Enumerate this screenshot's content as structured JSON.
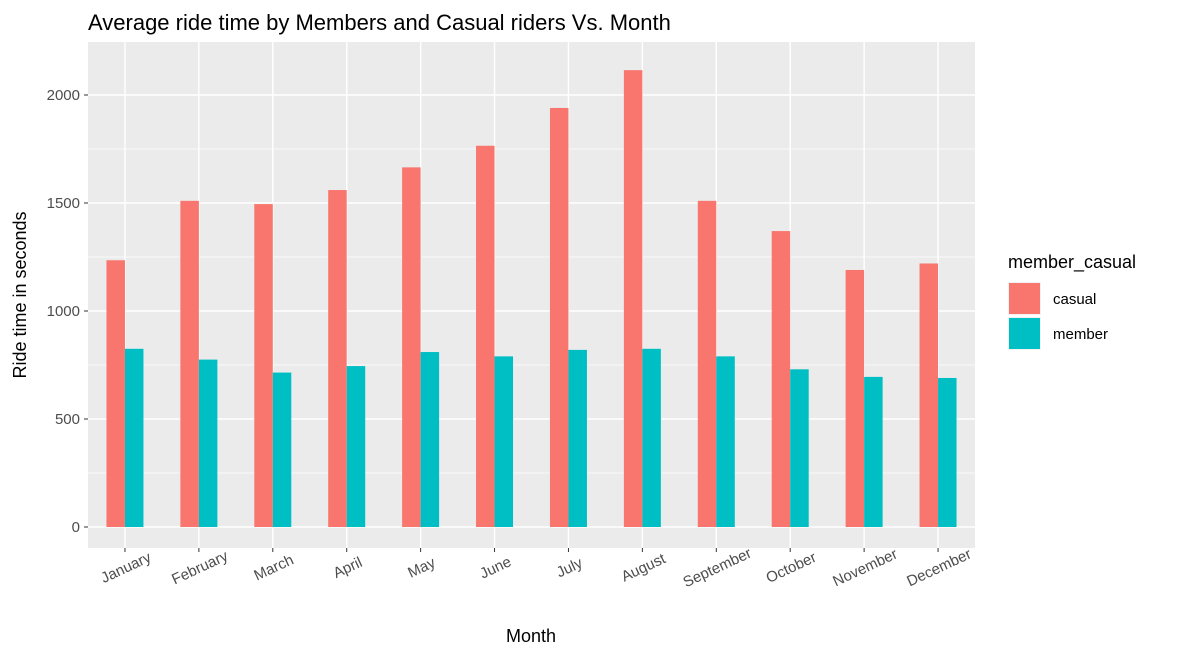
{
  "chart_data": {
    "type": "bar",
    "title": "Average ride time by Members and Casual riders Vs. Month",
    "xlabel": "Month",
    "ylabel": "Ride time in seconds",
    "categories": [
      "January",
      "February",
      "March",
      "April",
      "May",
      "June",
      "July",
      "August",
      "September",
      "October",
      "November",
      "December"
    ],
    "series": [
      {
        "name": "casual",
        "color": "#f8766d",
        "values": [
          1235,
          1510,
          1495,
          1560,
          1665,
          1765,
          1940,
          2115,
          1510,
          1370,
          1190,
          1220
        ]
      },
      {
        "name": "member",
        "color": "#00bfc4",
        "values": [
          825,
          775,
          715,
          745,
          810,
          790,
          820,
          825,
          790,
          730,
          695,
          690
        ]
      }
    ],
    "ylim": [
      0,
      2200
    ],
    "yticks": [
      0,
      500,
      1000,
      1500,
      2000
    ],
    "grid": true,
    "legend": {
      "title": "member_casual",
      "placement": "right"
    }
  }
}
